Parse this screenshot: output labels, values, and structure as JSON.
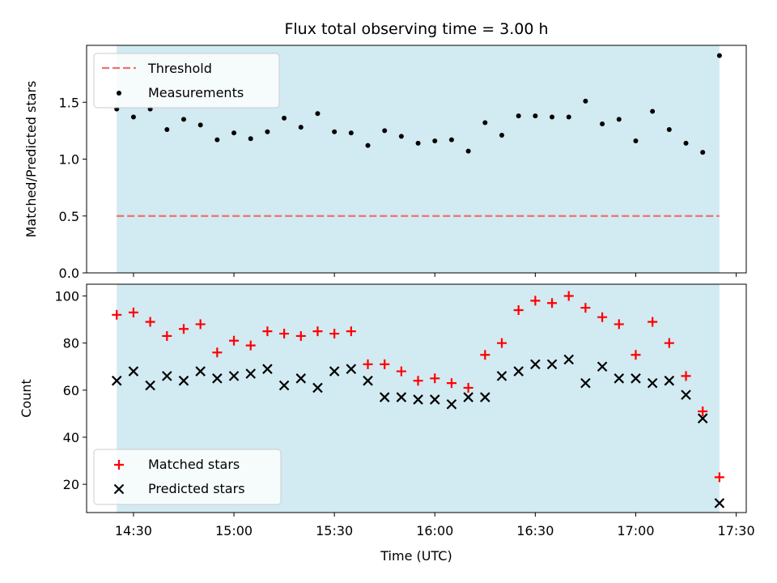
{
  "chart_data": [
    {
      "type": "scatter",
      "title": "Flux total observing time = 3.00 h",
      "xlabel": "",
      "ylabel": "Matched/Predicted stars",
      "xlim": [
        "14:16",
        "17:33"
      ],
      "ylim": [
        0,
        2.0
      ],
      "yticks": [
        "0.0",
        "0.5",
        "1.0",
        "1.5"
      ],
      "ytick_values": [
        0,
        0.5,
        1.0,
        1.5
      ],
      "shaded_span": [
        "14:25",
        "17:25"
      ],
      "threshold": 0.5,
      "legend": [
        "Threshold",
        "Measurements"
      ],
      "legend_loc": "upper-left",
      "x": [
        "14:25",
        "14:30",
        "14:35",
        "14:40",
        "14:45",
        "14:50",
        "14:55",
        "15:00",
        "15:05",
        "15:10",
        "15:15",
        "15:20",
        "15:25",
        "15:30",
        "15:35",
        "15:40",
        "15:45",
        "15:50",
        "15:55",
        "16:00",
        "16:05",
        "16:10",
        "16:15",
        "16:20",
        "16:25",
        "16:30",
        "16:35",
        "16:40",
        "16:45",
        "16:50",
        "16:55",
        "17:00",
        "17:05",
        "17:10",
        "17:15",
        "17:20",
        "17:25"
      ],
      "series": [
        {
          "name": "Measurements",
          "values": [
            1.44,
            1.37,
            1.44,
            1.26,
            1.35,
            1.3,
            1.17,
            1.23,
            1.18,
            1.24,
            1.36,
            1.28,
            1.4,
            1.24,
            1.23,
            1.12,
            1.25,
            1.2,
            1.14,
            1.16,
            1.17,
            1.07,
            1.32,
            1.21,
            1.38,
            1.38,
            1.37,
            1.37,
            1.51,
            1.31,
            1.35,
            1.16,
            1.42,
            1.26,
            1.14,
            1.06,
            1.91
          ]
        }
      ]
    },
    {
      "type": "scatter",
      "title": "",
      "xlabel": "Time (UTC)",
      "ylabel": "Count",
      "xlim": [
        "14:16",
        "17:33"
      ],
      "ylim": [
        8,
        105
      ],
      "yticks": [
        "20",
        "40",
        "60",
        "80",
        "100"
      ],
      "ytick_values": [
        20,
        40,
        60,
        80,
        100
      ],
      "xticks": [
        "14:30",
        "15:00",
        "15:30",
        "16:00",
        "16:30",
        "17:00",
        "17:30"
      ],
      "shaded_span": [
        "14:25",
        "17:25"
      ],
      "legend": [
        "Matched stars",
        "Predicted stars"
      ],
      "legend_loc": "lower-left",
      "x": [
        "14:25",
        "14:30",
        "14:35",
        "14:40",
        "14:45",
        "14:50",
        "14:55",
        "15:00",
        "15:05",
        "15:10",
        "15:15",
        "15:20",
        "15:25",
        "15:30",
        "15:35",
        "15:40",
        "15:45",
        "15:50",
        "15:55",
        "16:00",
        "16:05",
        "16:10",
        "16:15",
        "16:20",
        "16:25",
        "16:30",
        "16:35",
        "16:40",
        "16:45",
        "16:50",
        "16:55",
        "17:00",
        "17:05",
        "17:10",
        "17:15",
        "17:20",
        "17:25"
      ],
      "series": [
        {
          "name": "Matched stars",
          "values": [
            92,
            93,
            89,
            83,
            86,
            88,
            76,
            81,
            79,
            85,
            84,
            83,
            85,
            84,
            85,
            71,
            71,
            68,
            64,
            65,
            63,
            61,
            75,
            80,
            94,
            98,
            97,
            100,
            95,
            91,
            88,
            75,
            89,
            80,
            66,
            51,
            23
          ]
        },
        {
          "name": "Predicted stars",
          "values": [
            64,
            68,
            62,
            66,
            64,
            68,
            65,
            66,
            67,
            69,
            62,
            65,
            61,
            68,
            69,
            64,
            57,
            57,
            56,
            56,
            54,
            57,
            57,
            66,
            68,
            71,
            71,
            73,
            63,
            70,
            65,
            65,
            63,
            64,
            58,
            48,
            12
          ]
        }
      ]
    }
  ],
  "colors": {
    "span": "#add8e6",
    "threshold": "#f07070",
    "matched": "#ff0000",
    "predicted": "#000000",
    "measurement": "#000000"
  }
}
